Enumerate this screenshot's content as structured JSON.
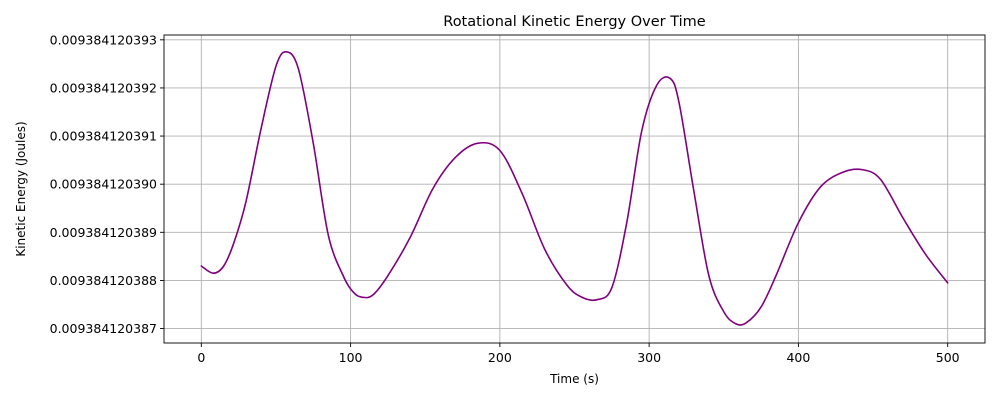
{
  "chart_data": {
    "type": "line",
    "title": "Rotational Kinetic Energy Over Time",
    "xlabel": "Time (s)",
    "ylabel": "Kinetic Energy (Joules)",
    "xlim": [
      -25,
      525
    ],
    "ylim": [
      0.0093841203867,
      0.0093841203931
    ],
    "grid": true,
    "legend": "none",
    "x_ticks": [
      0,
      100,
      200,
      300,
      400,
      500
    ],
    "x_tick_labels": [
      "0",
      "100",
      "200",
      "300",
      "400",
      "500"
    ],
    "y_ticks": [
      0.009384120387,
      0.009384120388,
      0.009384120389,
      0.00938412039,
      0.009384120391,
      0.009384120392,
      0.009384120393
    ],
    "y_tick_labels": [
      "0.009384120387",
      "0.009384120388",
      "0.009384120389",
      "0.009384120390",
      "0.009384120391",
      "0.009384120392",
      "0.009384120393"
    ],
    "series": [
      {
        "color": "#800080",
        "x": [
          0,
          8,
          15,
          22,
          30,
          40,
          50,
          57,
          65,
          75,
          85,
          95,
          102,
          108,
          115,
          125,
          140,
          155,
          170,
          185,
          200,
          215,
          230,
          245,
          255,
          265,
          275,
          285,
          295,
          305,
          314,
          320,
          330,
          340,
          350,
          358,
          365,
          375,
          385,
          400,
          415,
          430,
          443,
          455,
          470,
          485,
          500
        ],
        "y": [
          0.0093841203883,
          0.00938412038815,
          0.0093841203883,
          0.0093841203888,
          0.00938412038965,
          0.00938412039115,
          0.00938412039245,
          0.00938412039275,
          0.0093841203924,
          0.00938412039085,
          0.00938412038895,
          0.0093841203881,
          0.00938412038775,
          0.00938412038765,
          0.0093841203877,
          0.0093841203881,
          0.0093841203889,
          0.0093841203899,
          0.00938412039055,
          0.00938412039085,
          0.0093841203907,
          0.0093841203898,
          0.00938412038865,
          0.0093841203879,
          0.00938412038765,
          0.0093841203876,
          0.00938412038785,
          0.0093841203892,
          0.0093841203911,
          0.00938412039205,
          0.0093841203922,
          0.0093841203917,
          0.00938412038985,
          0.0093841203881,
          0.00938412038735,
          0.0093841203871,
          0.00938412038712,
          0.00938412038745,
          0.0093841203881,
          0.0093841203892,
          0.00938412038995,
          0.00938412039025,
          0.0093841203903,
          0.0093841203901,
          0.0093841203893,
          0.00938412038855,
          0.00938412038795
        ]
      }
    ]
  }
}
